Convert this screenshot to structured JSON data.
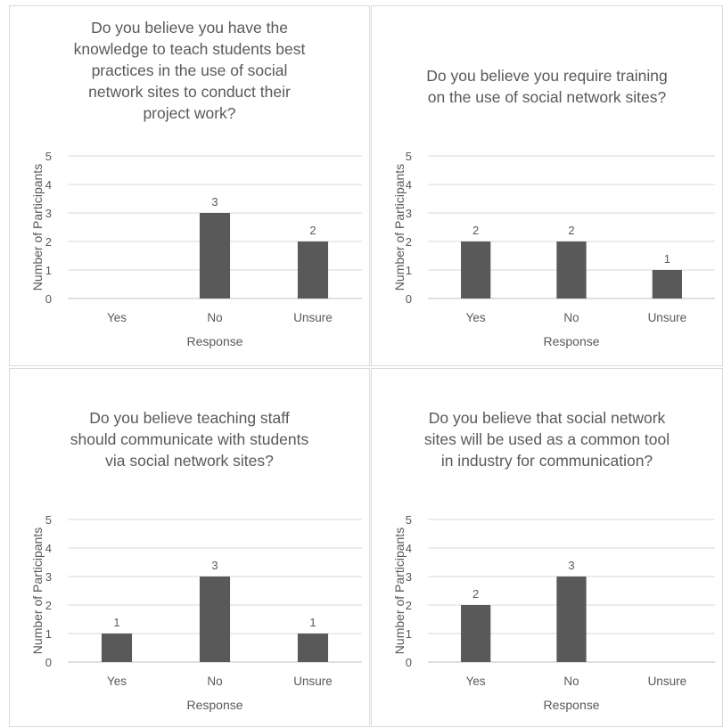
{
  "chart_data": [
    {
      "type": "bar",
      "title": "Do you believe you have the knowledge to teach students best practices in the use of social network sites to conduct their project work?",
      "title_lines": [
        "Do you believe you have the",
        "knowledge to teach students best",
        "practices in the use of social",
        "network sites to conduct their",
        "project work?"
      ],
      "categories": [
        "Yes",
        "No",
        "Unsure"
      ],
      "values": [
        0,
        3,
        2
      ],
      "data_labels": [
        "",
        "3",
        "2"
      ],
      "xlabel": "Response",
      "ylabel": "Number of Participants",
      "ylim": [
        0,
        5
      ],
      "yticks": [
        "0",
        "1",
        "2",
        "3",
        "4",
        "5"
      ],
      "grid": true,
      "bar_color": "#595959"
    },
    {
      "type": "bar",
      "title": "Do you believe you require training on the use of social network sites?",
      "title_lines": [
        "Do you believe you require training",
        "on the use of social network sites?"
      ],
      "categories": [
        "Yes",
        "No",
        "Unsure"
      ],
      "values": [
        2,
        2,
        1
      ],
      "data_labels": [
        "2",
        "2",
        "1"
      ],
      "xlabel": "Response",
      "ylabel": "Number of Participants",
      "ylim": [
        0,
        5
      ],
      "yticks": [
        "0",
        "1",
        "2",
        "3",
        "4",
        "5"
      ],
      "grid": true,
      "bar_color": "#595959"
    },
    {
      "type": "bar",
      "title": "Do you believe teaching staff should communicate with students via social network sites?",
      "title_lines": [
        "Do you believe teaching staff",
        "should communicate with students",
        "via social network sites?"
      ],
      "categories": [
        "Yes",
        "No",
        "Unsure"
      ],
      "values": [
        1,
        3,
        1
      ],
      "data_labels": [
        "1",
        "3",
        "1"
      ],
      "xlabel": "Response",
      "ylabel": "Number of Participants",
      "ylim": [
        0,
        5
      ],
      "yticks": [
        "0",
        "1",
        "2",
        "3",
        "4",
        "5"
      ],
      "grid": true,
      "bar_color": "#595959"
    },
    {
      "type": "bar",
      "title": "Do you believe that social network sites will be used as a common tool in industry for communication?",
      "title_lines": [
        "Do you believe that social network",
        "sites will be used as a common tool",
        "in industry for communication?"
      ],
      "categories": [
        "Yes",
        "No",
        "Unsure"
      ],
      "values": [
        2,
        3,
        0
      ],
      "data_labels": [
        "2",
        "3",
        ""
      ],
      "xlabel": "Response",
      "ylabel": "Number of Participants",
      "ylim": [
        0,
        5
      ],
      "yticks": [
        "0",
        "1",
        "2",
        "3",
        "4",
        "5"
      ],
      "grid": true,
      "bar_color": "#595959"
    }
  ]
}
